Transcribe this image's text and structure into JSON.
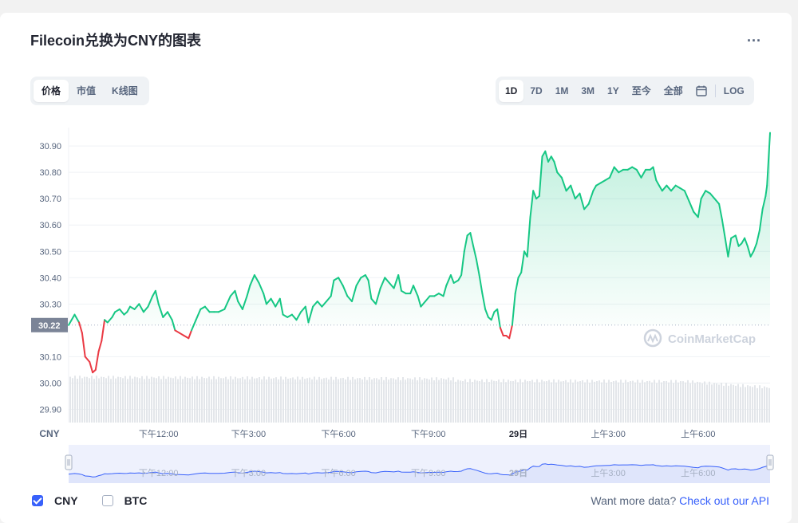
{
  "header": {
    "title": "Filecoin兑换为CNY的图表",
    "more_label": "..."
  },
  "tabs": [
    {
      "label": "价格",
      "active": true
    },
    {
      "label": "市值",
      "active": false
    },
    {
      "label": "K线图",
      "active": false
    }
  ],
  "ranges": [
    {
      "label": "1D",
      "active": true
    },
    {
      "label": "7D"
    },
    {
      "label": "1M"
    },
    {
      "label": "3M"
    },
    {
      "label": "1Y"
    },
    {
      "label": "至今"
    },
    {
      "label": "全部"
    }
  ],
  "log_label": "LOG",
  "watermark": "CoinMarketCap",
  "chart_data": {
    "type": "area",
    "currency_label": "CNY",
    "y_ticks": [
      "30.90",
      "30.80",
      "30.70",
      "30.60",
      "30.50",
      "30.40",
      "30.30",
      "30.10",
      "30.00",
      "29.90"
    ],
    "ylim": [
      29.85,
      30.97
    ],
    "reference_price": 30.22,
    "reference_label": "30.22",
    "x_ticks": [
      {
        "label": "下午12:00",
        "h": 12.0
      },
      {
        "label": "下午3:00",
        "h": 15.0
      },
      {
        "label": "下午6:00",
        "h": 18.0
      },
      {
        "label": "下午9:00",
        "h": 21.0
      },
      {
        "label": "29日",
        "h": 24.0,
        "bold": true
      },
      {
        "label": "上午3:00",
        "h": 27.0
      },
      {
        "label": "上午6:00",
        "h": 30.0
      }
    ],
    "x_range_hours": [
      9.0,
      32.4
    ],
    "series": [
      {
        "values": [
          [
            9.0,
            30.22
          ],
          [
            9.2,
            30.26
          ],
          [
            9.35,
            30.23
          ],
          [
            9.45,
            30.19
          ],
          [
            9.55,
            30.1
          ],
          [
            9.7,
            30.08
          ],
          [
            9.8,
            30.04
          ],
          [
            9.9,
            30.05
          ],
          [
            10.0,
            30.12
          ],
          [
            10.1,
            30.16
          ],
          [
            10.2,
            30.24
          ],
          [
            10.3,
            30.23
          ],
          [
            10.45,
            30.25
          ],
          [
            10.55,
            30.27
          ],
          [
            10.7,
            30.28
          ],
          [
            10.85,
            30.26
          ],
          [
            10.95,
            30.27
          ],
          [
            11.05,
            30.29
          ],
          [
            11.2,
            30.28
          ],
          [
            11.35,
            30.3
          ],
          [
            11.5,
            30.27
          ],
          [
            11.65,
            30.29
          ],
          [
            11.8,
            30.33
          ],
          [
            11.9,
            30.35
          ],
          [
            12.0,
            30.3
          ],
          [
            12.15,
            30.25
          ],
          [
            12.3,
            30.27
          ],
          [
            12.45,
            30.24
          ],
          [
            12.55,
            30.2
          ],
          [
            12.7,
            30.19
          ],
          [
            12.85,
            30.18
          ],
          [
            13.0,
            30.17
          ],
          [
            13.1,
            30.2
          ],
          [
            13.25,
            30.24
          ],
          [
            13.4,
            30.28
          ],
          [
            13.55,
            30.29
          ],
          [
            13.7,
            30.27
          ],
          [
            13.85,
            30.27
          ],
          [
            14.0,
            30.27
          ],
          [
            14.2,
            30.28
          ],
          [
            14.4,
            30.33
          ],
          [
            14.55,
            30.35
          ],
          [
            14.65,
            30.31
          ],
          [
            14.8,
            30.28
          ],
          [
            14.95,
            30.33
          ],
          [
            15.05,
            30.37
          ],
          [
            15.2,
            30.41
          ],
          [
            15.35,
            30.38
          ],
          [
            15.5,
            30.34
          ],
          [
            15.6,
            30.3
          ],
          [
            15.75,
            30.32
          ],
          [
            15.9,
            30.29
          ],
          [
            16.05,
            30.32
          ],
          [
            16.15,
            30.26
          ],
          [
            16.3,
            30.25
          ],
          [
            16.45,
            30.26
          ],
          [
            16.6,
            30.24
          ],
          [
            16.75,
            30.27
          ],
          [
            16.9,
            30.29
          ],
          [
            17.0,
            30.23
          ],
          [
            17.15,
            30.29
          ],
          [
            17.3,
            30.31
          ],
          [
            17.45,
            30.29
          ],
          [
            17.6,
            30.31
          ],
          [
            17.75,
            30.33
          ],
          [
            17.85,
            30.39
          ],
          [
            18.0,
            30.4
          ],
          [
            18.15,
            30.37
          ],
          [
            18.3,
            30.33
          ],
          [
            18.45,
            30.31
          ],
          [
            18.6,
            30.37
          ],
          [
            18.75,
            30.4
          ],
          [
            18.9,
            30.41
          ],
          [
            19.0,
            30.39
          ],
          [
            19.1,
            30.32
          ],
          [
            19.25,
            30.3
          ],
          [
            19.4,
            30.36
          ],
          [
            19.55,
            30.4
          ],
          [
            19.7,
            30.38
          ],
          [
            19.85,
            30.36
          ],
          [
            20.0,
            30.41
          ],
          [
            20.1,
            30.35
          ],
          [
            20.25,
            30.34
          ],
          [
            20.4,
            30.34
          ],
          [
            20.5,
            30.37
          ],
          [
            20.65,
            30.33
          ],
          [
            20.75,
            30.29
          ],
          [
            20.9,
            30.31
          ],
          [
            21.05,
            30.33
          ],
          [
            21.2,
            30.33
          ],
          [
            21.35,
            30.34
          ],
          [
            21.5,
            30.33
          ],
          [
            21.6,
            30.37
          ],
          [
            21.75,
            30.41
          ],
          [
            21.85,
            30.38
          ],
          [
            22.0,
            30.39
          ],
          [
            22.1,
            30.41
          ],
          [
            22.2,
            30.5
          ],
          [
            22.3,
            30.56
          ],
          [
            22.4,
            30.57
          ],
          [
            22.5,
            30.52
          ],
          [
            22.6,
            30.47
          ],
          [
            22.7,
            30.41
          ],
          [
            22.8,
            30.34
          ],
          [
            22.9,
            30.28
          ],
          [
            23.0,
            30.25
          ],
          [
            23.1,
            30.24
          ],
          [
            23.2,
            30.27
          ],
          [
            23.3,
            30.28
          ],
          [
            23.4,
            30.21
          ],
          [
            23.5,
            30.18
          ],
          [
            23.6,
            30.18
          ],
          [
            23.7,
            30.17
          ],
          [
            23.8,
            30.22
          ],
          [
            23.9,
            30.34
          ],
          [
            24.0,
            30.4
          ],
          [
            24.1,
            30.42
          ],
          [
            24.2,
            30.5
          ],
          [
            24.3,
            30.48
          ],
          [
            24.4,
            30.63
          ],
          [
            24.5,
            30.73
          ],
          [
            24.6,
            30.7
          ],
          [
            24.7,
            30.71
          ],
          [
            24.8,
            30.86
          ],
          [
            24.9,
            30.88
          ],
          [
            25.0,
            30.84
          ],
          [
            25.1,
            30.86
          ],
          [
            25.2,
            30.84
          ],
          [
            25.3,
            30.8
          ],
          [
            25.45,
            30.78
          ],
          [
            25.6,
            30.73
          ],
          [
            25.75,
            30.75
          ],
          [
            25.9,
            30.7
          ],
          [
            26.05,
            30.72
          ],
          [
            26.2,
            30.66
          ],
          [
            26.35,
            30.68
          ],
          [
            26.5,
            30.73
          ],
          [
            26.6,
            30.75
          ],
          [
            26.75,
            30.76
          ],
          [
            26.9,
            30.77
          ],
          [
            27.05,
            30.78
          ],
          [
            27.2,
            30.82
          ],
          [
            27.35,
            30.8
          ],
          [
            27.5,
            30.81
          ],
          [
            27.65,
            30.81
          ],
          [
            27.8,
            30.82
          ],
          [
            27.95,
            30.81
          ],
          [
            28.1,
            30.78
          ],
          [
            28.25,
            30.81
          ],
          [
            28.4,
            30.81
          ],
          [
            28.5,
            30.82
          ],
          [
            28.6,
            30.77
          ],
          [
            28.7,
            30.75
          ],
          [
            28.8,
            30.73
          ],
          [
            28.95,
            30.75
          ],
          [
            29.1,
            30.73
          ],
          [
            29.25,
            30.75
          ],
          [
            29.4,
            30.74
          ],
          [
            29.55,
            30.73
          ],
          [
            29.7,
            30.69
          ],
          [
            29.85,
            30.65
          ],
          [
            30.0,
            30.63
          ],
          [
            30.1,
            30.7
          ],
          [
            30.25,
            30.73
          ],
          [
            30.4,
            30.72
          ],
          [
            30.55,
            30.7
          ],
          [
            30.7,
            30.68
          ],
          [
            30.8,
            30.62
          ],
          [
            30.9,
            30.55
          ],
          [
            31.0,
            30.48
          ],
          [
            31.1,
            30.55
          ],
          [
            31.25,
            30.56
          ],
          [
            31.35,
            30.52
          ],
          [
            31.45,
            30.53
          ],
          [
            31.55,
            30.55
          ],
          [
            31.65,
            30.52
          ],
          [
            31.75,
            30.48
          ],
          [
            31.85,
            30.5
          ],
          [
            31.95,
            30.53
          ],
          [
            32.05,
            30.58
          ],
          [
            32.15,
            30.66
          ],
          [
            32.25,
            30.71
          ],
          [
            32.3,
            30.75
          ],
          [
            32.4,
            30.95
          ]
        ]
      }
    ]
  },
  "navigator_labels": [
    "下午12:00",
    "下午3:00",
    "下午6:00",
    "下午9:00",
    "29日",
    "上午3:00",
    "上午6:00"
  ],
  "legend": [
    {
      "label": "CNY",
      "checked": true
    },
    {
      "label": "BTC",
      "checked": false
    }
  ],
  "footer": {
    "text": "Want more data? ",
    "link": "Check out our API"
  },
  "colors": {
    "up": "#16c784",
    "down": "#ea3943",
    "accent": "#3861fb",
    "nav_fill": "#dfe5fb"
  }
}
